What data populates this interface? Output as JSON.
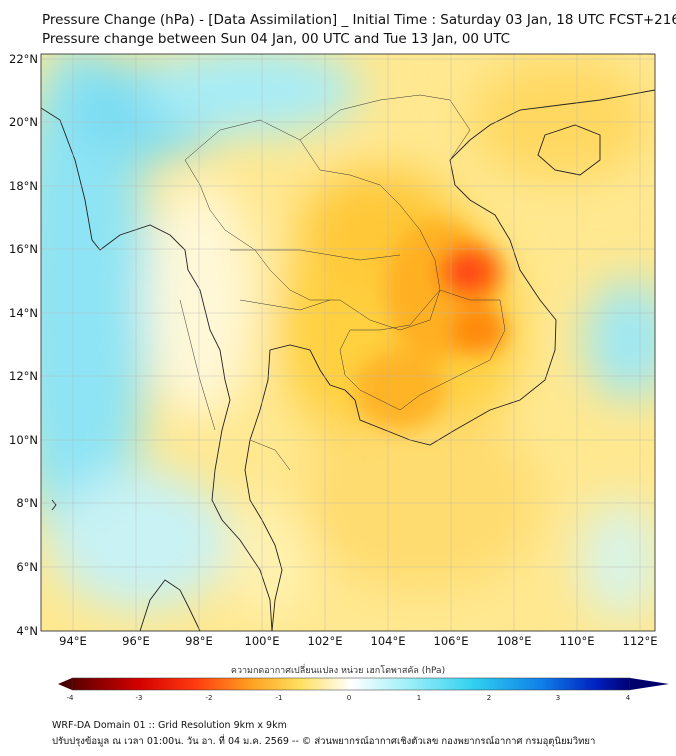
{
  "title": {
    "line1": "Pressure Change (hPa) - [Data Assimilation] _ Initial Time : Saturday 03 Jan, 18 UTC FCST+216",
    "line2": "Pressure change between Sun 04 Jan, 00 UTC and Tue 13 Jan, 00 UTC"
  },
  "map": {
    "lat_range": [
      4,
      22
    ],
    "lon_range": [
      93,
      112.5
    ],
    "lat_ticks": [
      "4°N",
      "6°N",
      "8°N",
      "10°N",
      "12°N",
      "14°N",
      "16°N",
      "18°N",
      "20°N",
      "22°N"
    ],
    "lon_ticks": [
      "94°E",
      "96°E",
      "98°E",
      "100°E",
      "102°E",
      "104°E",
      "106°E",
      "108°E",
      "110°E",
      "112°E"
    ],
    "highlight": "Strongest pressure drop over southern Laos / northeastern Cambodia near 106.5°E, 15°N"
  },
  "colorbar": {
    "label": "ความกดอากาศเปลี่ยนแปลง หน่วย เฮกโตพาสคัล (hPa)",
    "ticks": [
      "-4",
      "-3",
      "-2",
      "-1",
      "0",
      "1",
      "2",
      "3",
      "4"
    ],
    "min": -4,
    "max": 4
  },
  "footer": {
    "line1": "WRF-DA Domain 01 :: Grid Resolution 9km x 9km",
    "line2": "ปรับปรุงข้อมูล ณ เวลา 01:00น. วัน อา. ที่ 04 ม.ค. 2569 -- © ส่วนพยากรณ์อากาศเชิงตัวเลข กองพยากรณ์อากาศ กรมอุตุนิยมวิทยา"
  },
  "colors": {
    "ocean_cyan": "#74dcf0",
    "pale": "#fff6c8",
    "yellow": "#ffe27a",
    "orange": "#ffbf3a",
    "low": "#ff3018"
  }
}
